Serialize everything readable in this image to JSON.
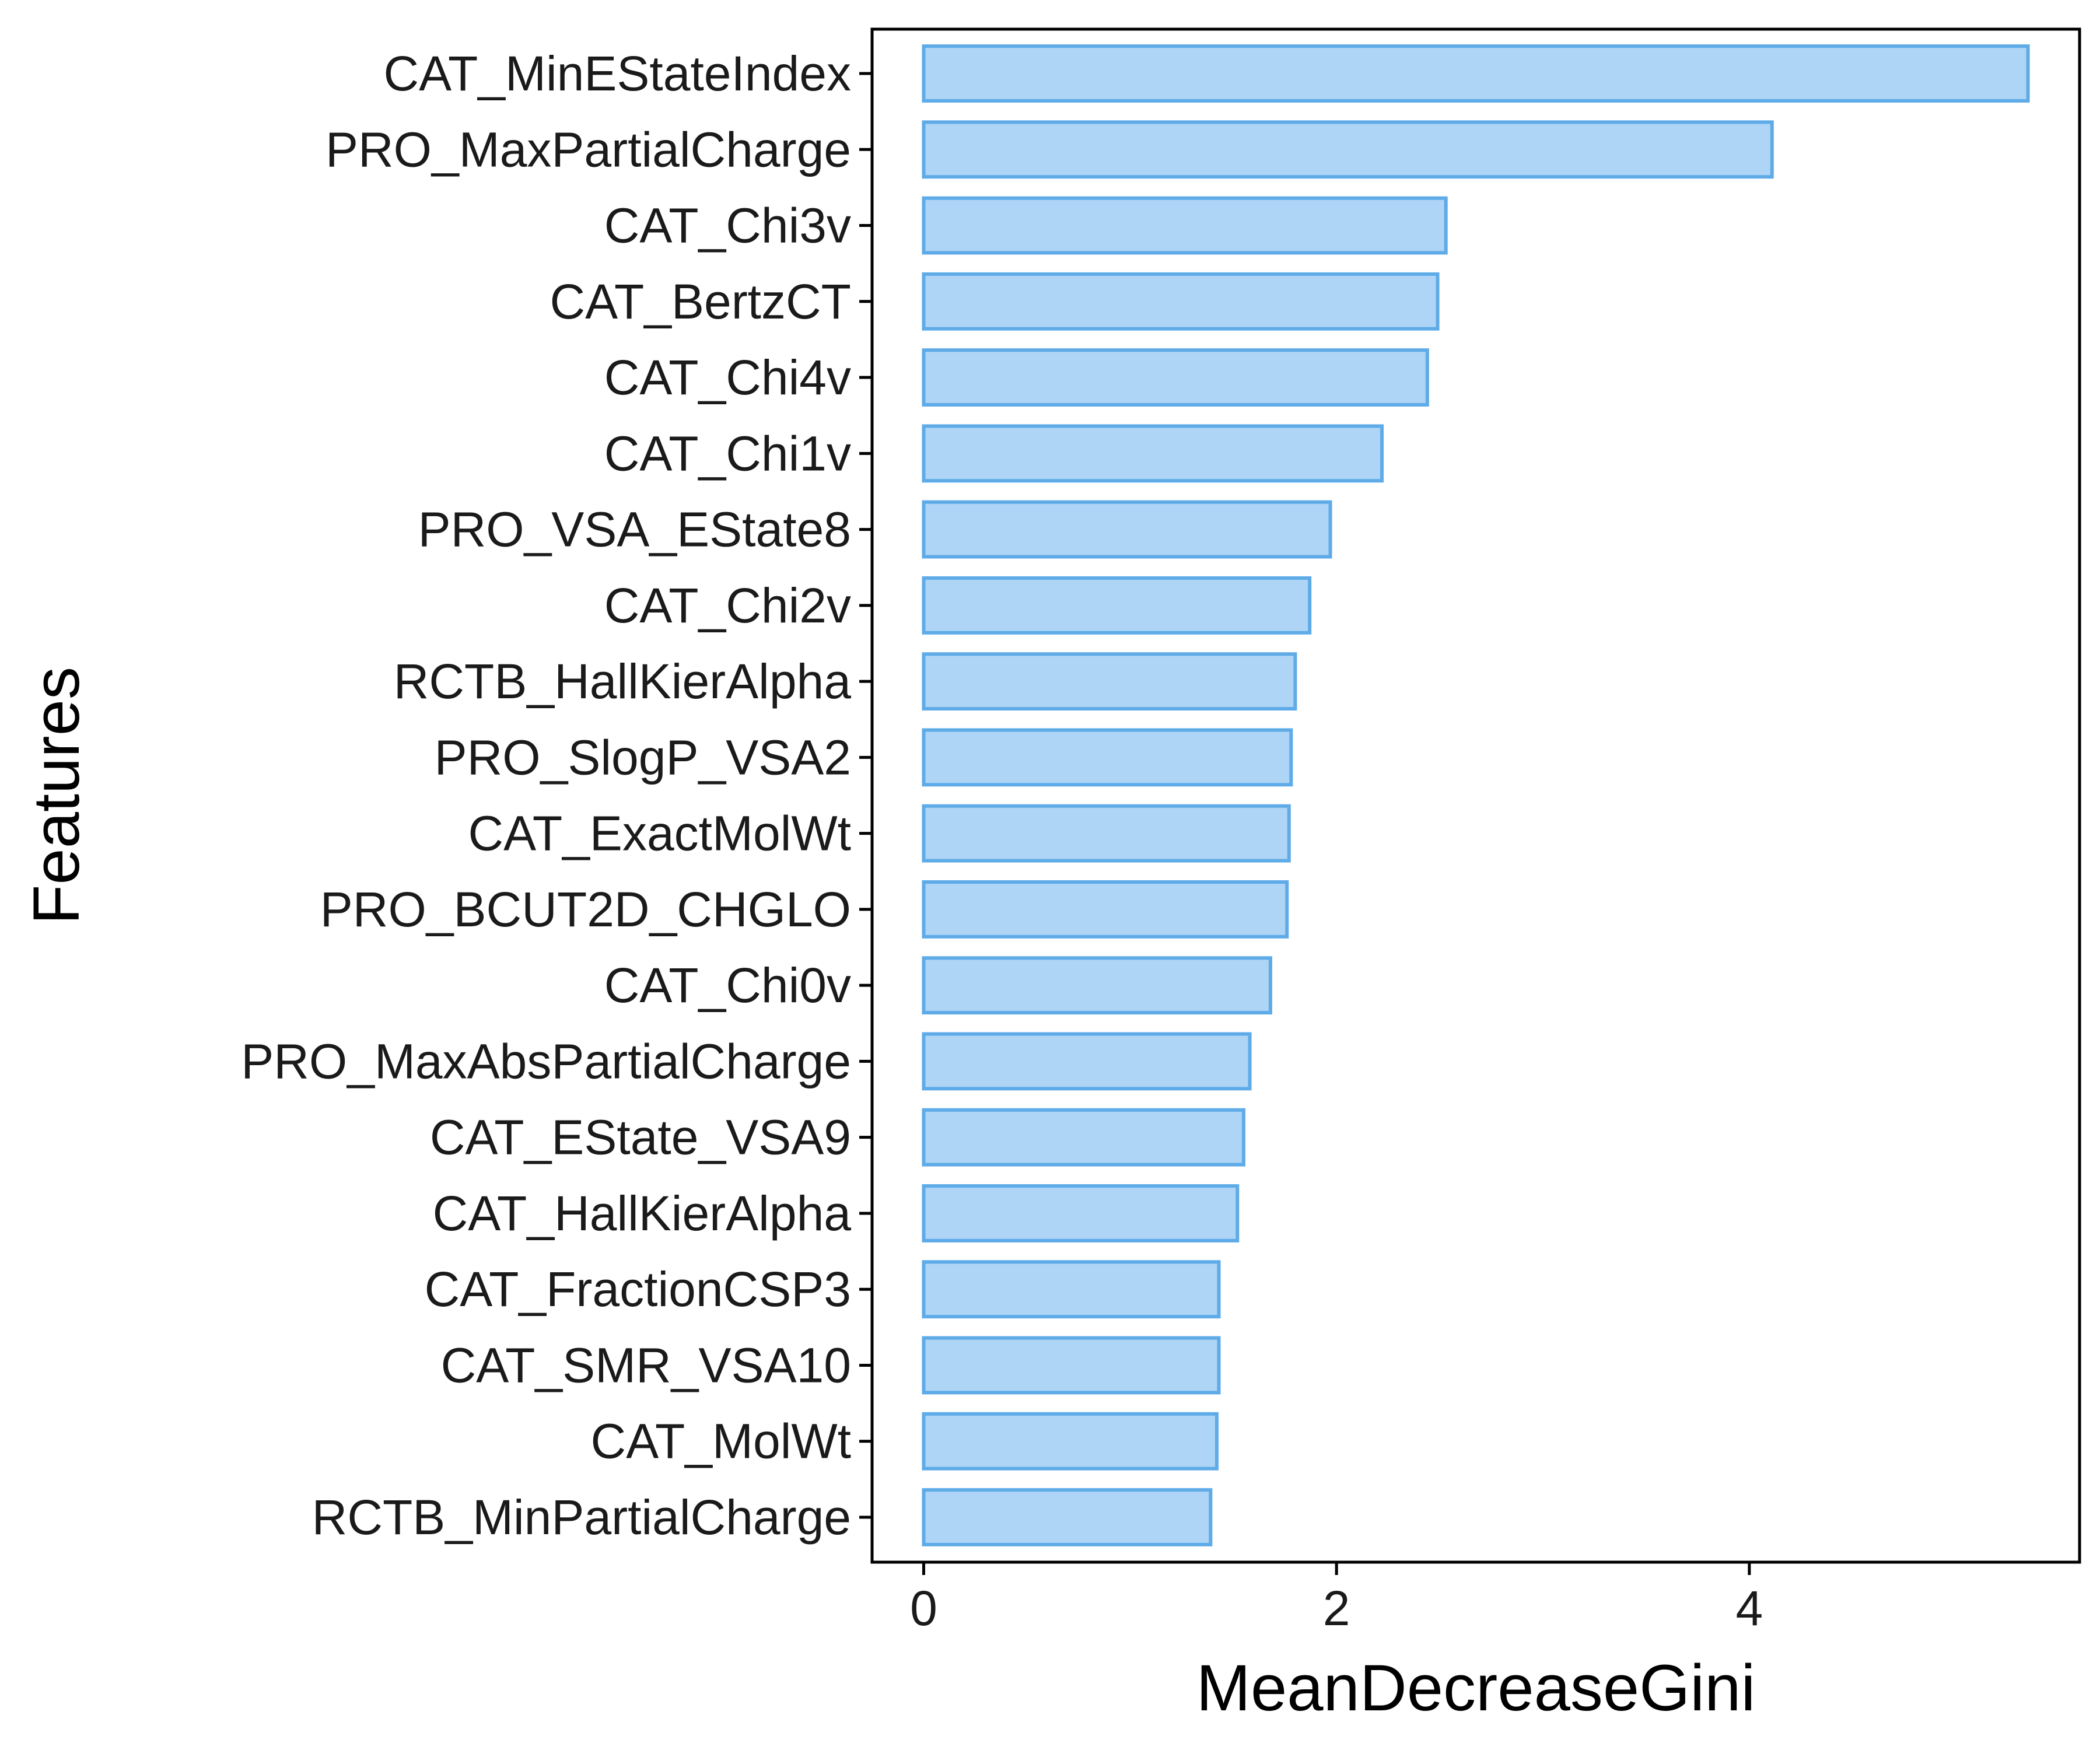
{
  "chart_data": {
    "type": "bar",
    "orientation": "horizontal",
    "title": "",
    "xlabel": "MeanDecreaseGini",
    "ylabel": "Features",
    "xlim": [
      -0.25,
      5.6
    ],
    "xticks": [
      0,
      2,
      4
    ],
    "grid": false,
    "legend": "none",
    "bar_fill": "#aed5f6",
    "bar_stroke": "#5eabe8",
    "categories": [
      "CAT_MinEStateIndex",
      "PRO_MaxPartialCharge",
      "CAT_Chi3v",
      "CAT_BertzCT",
      "CAT_Chi4v",
      "CAT_Chi1v",
      "PRO_VSA_EState8",
      "CAT_Chi2v",
      "RCTB_HallKierAlpha",
      "PRO_SlogP_VSA2",
      "CAT_ExactMolWt",
      "PRO_BCUT2D_CHGLO",
      "CAT_Chi0v",
      "PRO_MaxAbsPartialCharge",
      "CAT_EState_VSA9",
      "CAT_HallKierAlpha",
      "CAT_FractionCSP3",
      "CAT_SMR_VSA10",
      "CAT_MolWt",
      "RCTB_MinPartialCharge"
    ],
    "values": [
      5.35,
      4.11,
      2.53,
      2.49,
      2.44,
      2.22,
      1.97,
      1.87,
      1.8,
      1.78,
      1.77,
      1.76,
      1.68,
      1.58,
      1.55,
      1.52,
      1.43,
      1.43,
      1.42,
      1.39
    ]
  }
}
